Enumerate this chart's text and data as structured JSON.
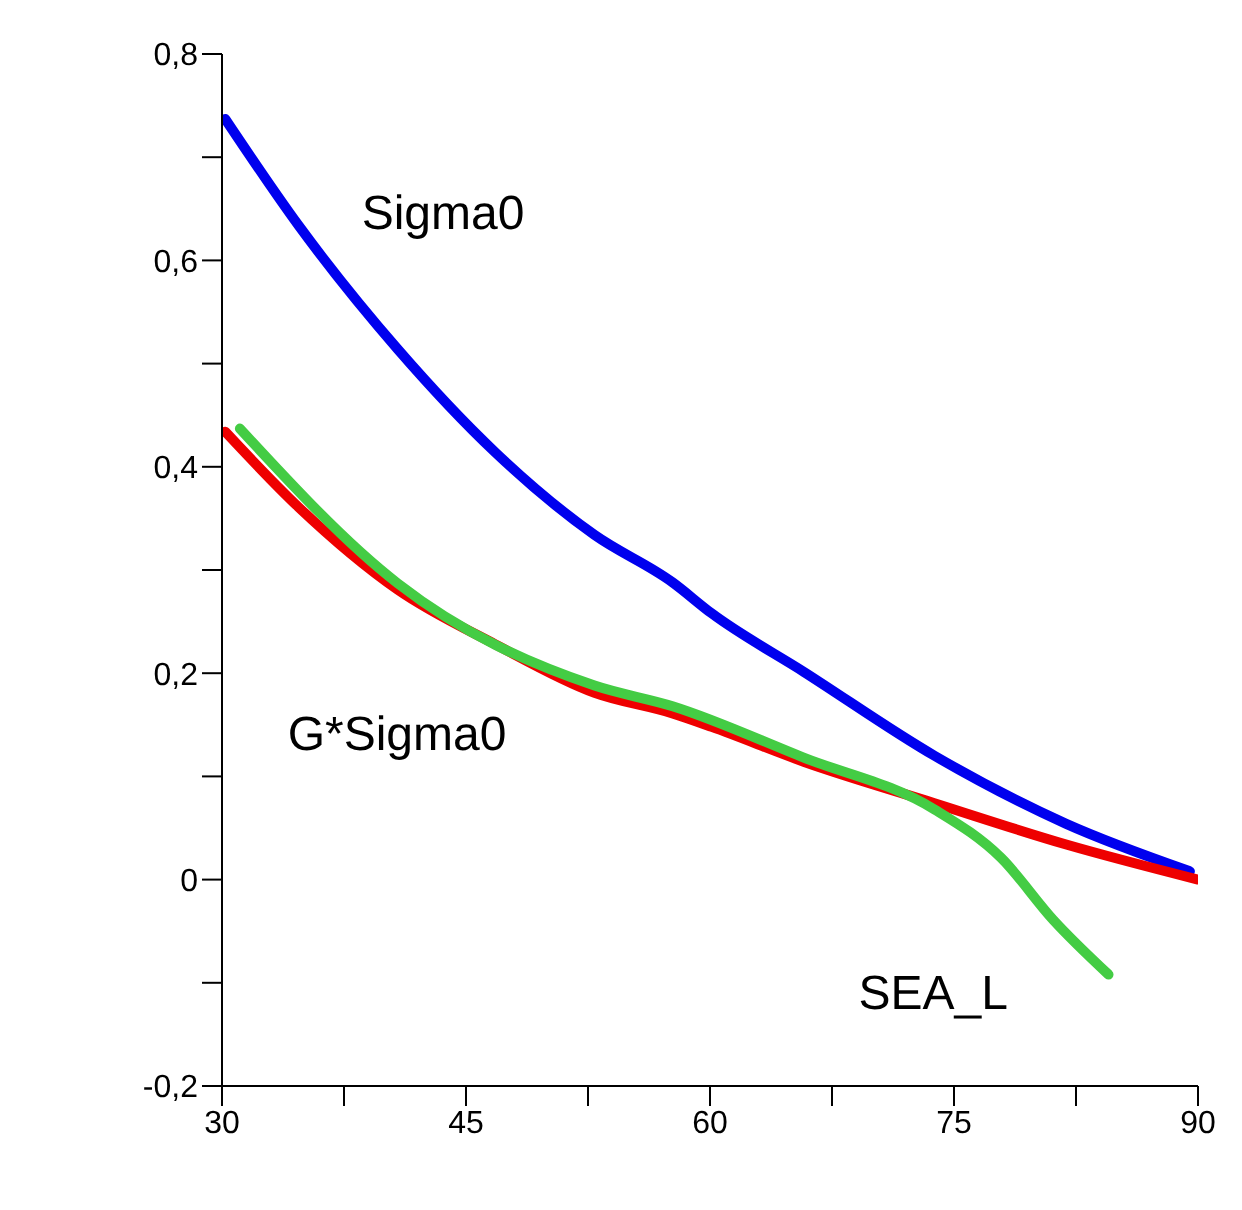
{
  "chart_data": {
    "type": "line",
    "xlim": [
      30,
      90
    ],
    "ylim": [
      -0.2,
      0.8
    ],
    "xticks": [
      30,
      {
        "value": 37.5,
        "label": null
      },
      45,
      {
        "value": 52.5,
        "label": null
      },
      60,
      {
        "value": 67.5,
        "label": null
      },
      75,
      {
        "value": 82.5,
        "label": null
      },
      90
    ],
    "yticks": [
      {
        "value": -0.2,
        "label": "-0,2"
      },
      {
        "value": -0.1,
        "label": null
      },
      {
        "value": 0,
        "label": "0"
      },
      {
        "value": 0.1,
        "label": null
      },
      {
        "value": 0.2,
        "label": "0,2"
      },
      {
        "value": 0.3,
        "label": null
      },
      {
        "value": 0.4,
        "label": "0,4"
      },
      {
        "value": 0.5,
        "label": null
      },
      {
        "value": 0.6,
        "label": "0,6"
      },
      {
        "value": 0.7,
        "label": null
      },
      {
        "value": 0.8,
        "label": "0,8"
      }
    ],
    "marker": "none",
    "line_style": "solid",
    "series": [
      {
        "name": "Sigma0",
        "color": "#0000ee",
        "x": [
          30.2,
          34.7,
          40.8,
          46.8,
          52.9,
          57.7,
          60.1,
          65.8,
          73.8,
          81.9,
          89.5
        ],
        "values": [
          0.737,
          0.634,
          0.514,
          0.414,
          0.334,
          0.288,
          0.258,
          0.201,
          0.12,
          0.054,
          0.008
        ]
      },
      {
        "name": "G*Sigma0",
        "color": "#ee0000",
        "x": [
          30.2,
          34.7,
          40.8,
          46.8,
          52.9,
          57.7,
          60.1,
          65.8,
          73.8,
          81.9,
          90
        ],
        "values": [
          0.434,
          0.361,
          0.281,
          0.228,
          0.181,
          0.161,
          0.148,
          0.114,
          0.074,
          0.034,
          0
        ]
      },
      {
        "name": "SEA_L",
        "color": "#44cc44",
        "x": [
          31.1,
          40.8,
          52.9,
          57.7,
          65.8,
          73.8,
          77.9,
          81.1,
          84.5
        ],
        "values": [
          0.437,
          0.287,
          0.188,
          0.168,
          0.118,
          0.068,
          0.021,
          -0.039,
          -0.092
        ]
      }
    ]
  }
}
